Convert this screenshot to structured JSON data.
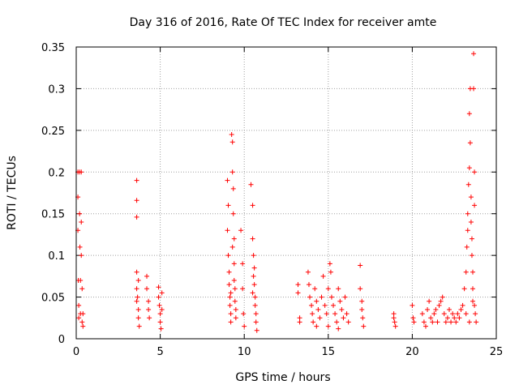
{
  "chart_data": {
    "type": "scatter",
    "title": "Day 316 of 2016, Rate Of TEC Index for receiver amte",
    "xlabel": "GPS time / hours",
    "ylabel": "ROTI / TECUs",
    "xlim": [
      0,
      25
    ],
    "ylim": [
      0,
      0.35
    ],
    "xticks": [
      0,
      5,
      10,
      15,
      20,
      25
    ],
    "xtick_labels": [
      "0",
      "5",
      "10",
      "15",
      "20",
      "25"
    ],
    "yticks": [
      0,
      0.05,
      0.1,
      0.15,
      0.2,
      0.25,
      0.3,
      0.35
    ],
    "ytick_labels": [
      "0",
      "0.05",
      "0.1",
      "0.15",
      "0.2",
      "0.25",
      "0.3",
      "0.35"
    ],
    "grid": true,
    "marker": "+",
    "color": "#ff0000",
    "series": [
      {
        "points": [
          [
            0.1,
            0.2
          ],
          [
            0.1,
            0.17
          ],
          [
            0.1,
            0.13
          ],
          [
            0.12,
            0.07
          ],
          [
            0.15,
            0.04
          ],
          [
            0.15,
            0.025
          ],
          [
            0.2,
            0.2
          ],
          [
            0.2,
            0.15
          ],
          [
            0.22,
            0.11
          ],
          [
            0.25,
            0.07
          ],
          [
            0.25,
            0.03
          ],
          [
            0.3,
            0.2
          ],
          [
            0.3,
            0.14
          ],
          [
            0.3,
            0.1
          ],
          [
            0.35,
            0.06
          ],
          [
            0.35,
            0.02
          ],
          [
            0.4,
            0.03
          ],
          [
            0.4,
            0.015
          ],
          [
            3.6,
            0.19
          ],
          [
            3.6,
            0.166
          ],
          [
            3.6,
            0.146
          ],
          [
            3.6,
            0.08
          ],
          [
            3.6,
            0.06
          ],
          [
            3.6,
            0.045
          ],
          [
            3.7,
            0.035
          ],
          [
            3.7,
            0.025
          ],
          [
            3.75,
            0.015
          ],
          [
            3.7,
            0.07
          ],
          [
            3.65,
            0.05
          ],
          [
            4.2,
            0.075
          ],
          [
            4.2,
            0.06
          ],
          [
            4.3,
            0.045
          ],
          [
            4.3,
            0.035
          ],
          [
            4.35,
            0.025
          ],
          [
            4.9,
            0.062
          ],
          [
            4.9,
            0.05
          ],
          [
            4.95,
            0.04
          ],
          [
            5.0,
            0.03
          ],
          [
            5.0,
            0.02
          ],
          [
            5.05,
            0.012
          ],
          [
            5.1,
            0.055
          ],
          [
            5.1,
            0.035
          ],
          [
            9.0,
            0.19
          ],
          [
            9.05,
            0.16
          ],
          [
            9.0,
            0.13
          ],
          [
            9.05,
            0.1
          ],
          [
            9.1,
            0.08
          ],
          [
            9.1,
            0.065
          ],
          [
            9.15,
            0.05
          ],
          [
            9.15,
            0.04
          ],
          [
            9.2,
            0.03
          ],
          [
            9.2,
            0.02
          ],
          [
            9.25,
            0.245
          ],
          [
            9.3,
            0.236
          ],
          [
            9.3,
            0.2
          ],
          [
            9.35,
            0.18
          ],
          [
            9.35,
            0.15
          ],
          [
            9.4,
            0.12
          ],
          [
            9.4,
            0.09
          ],
          [
            9.4,
            0.07
          ],
          [
            9.45,
            0.06
          ],
          [
            9.45,
            0.045
          ],
          [
            9.5,
            0.035
          ],
          [
            9.5,
            0.025
          ],
          [
            9.3,
            0.11
          ],
          [
            9.2,
            0.055
          ],
          [
            9.8,
            0.13
          ],
          [
            9.9,
            0.09
          ],
          [
            9.9,
            0.06
          ],
          [
            9.95,
            0.03
          ],
          [
            10.0,
            0.015
          ],
          [
            10.4,
            0.185
          ],
          [
            10.5,
            0.16
          ],
          [
            10.5,
            0.12
          ],
          [
            10.55,
            0.1
          ],
          [
            10.6,
            0.085
          ],
          [
            10.6,
            0.065
          ],
          [
            10.65,
            0.05
          ],
          [
            10.65,
            0.04
          ],
          [
            10.7,
            0.03
          ],
          [
            10.7,
            0.02
          ],
          [
            10.75,
            0.01
          ],
          [
            10.5,
            0.055
          ],
          [
            10.55,
            0.075
          ],
          [
            13.2,
            0.065
          ],
          [
            13.2,
            0.055
          ],
          [
            13.3,
            0.025
          ],
          [
            13.3,
            0.02
          ],
          [
            13.8,
            0.08
          ],
          [
            13.85,
            0.065
          ],
          [
            13.9,
            0.05
          ],
          [
            14.0,
            0.04
          ],
          [
            14.05,
            0.03
          ],
          [
            14.1,
            0.02
          ],
          [
            14.2,
            0.06
          ],
          [
            14.3,
            0.045
          ],
          [
            14.4,
            0.035
          ],
          [
            14.5,
            0.025
          ],
          [
            14.6,
            0.05
          ],
          [
            14.7,
            0.075
          ],
          [
            14.8,
            0.04
          ],
          [
            14.9,
            0.03
          ],
          [
            15.0,
            0.06
          ],
          [
            15.1,
            0.09
          ],
          [
            15.15,
            0.08
          ],
          [
            15.2,
            0.05
          ],
          [
            15.3,
            0.04
          ],
          [
            15.4,
            0.03
          ],
          [
            15.5,
            0.02
          ],
          [
            15.6,
            0.06
          ],
          [
            15.7,
            0.045
          ],
          [
            15.8,
            0.035
          ],
          [
            15.9,
            0.025
          ],
          [
            16.0,
            0.05
          ],
          [
            16.1,
            0.03
          ],
          [
            16.2,
            0.02
          ],
          [
            14.3,
            0.015
          ],
          [
            15.0,
            0.015
          ],
          [
            15.6,
            0.012
          ],
          [
            16.9,
            0.088
          ],
          [
            16.9,
            0.06
          ],
          [
            17.0,
            0.045
          ],
          [
            17.0,
            0.035
          ],
          [
            17.05,
            0.025
          ],
          [
            17.1,
            0.015
          ],
          [
            18.9,
            0.03
          ],
          [
            18.9,
            0.025
          ],
          [
            18.95,
            0.02
          ],
          [
            19.0,
            0.015
          ],
          [
            20.0,
            0.04
          ],
          [
            20.05,
            0.025
          ],
          [
            20.1,
            0.02
          ],
          [
            20.6,
            0.03
          ],
          [
            20.7,
            0.02
          ],
          [
            20.8,
            0.015
          ],
          [
            20.9,
            0.035
          ],
          [
            21.0,
            0.045
          ],
          [
            21.1,
            0.025
          ],
          [
            21.2,
            0.02
          ],
          [
            21.3,
            0.03
          ],
          [
            21.4,
            0.035
          ],
          [
            21.5,
            0.02
          ],
          [
            21.6,
            0.04
          ],
          [
            21.7,
            0.045
          ],
          [
            21.8,
            0.05
          ],
          [
            21.9,
            0.03
          ],
          [
            22.0,
            0.02
          ],
          [
            22.1,
            0.025
          ],
          [
            22.2,
            0.035
          ],
          [
            22.3,
            0.02
          ],
          [
            22.4,
            0.03
          ],
          [
            22.5,
            0.025
          ],
          [
            22.6,
            0.02
          ],
          [
            22.7,
            0.03
          ],
          [
            22.8,
            0.025
          ],
          [
            22.9,
            0.035
          ],
          [
            23.0,
            0.04
          ],
          [
            23.1,
            0.06
          ],
          [
            23.2,
            0.08
          ],
          [
            23.25,
            0.11
          ],
          [
            23.3,
            0.13
          ],
          [
            23.3,
            0.15
          ],
          [
            23.35,
            0.185
          ],
          [
            23.4,
            0.205
          ],
          [
            23.4,
            0.27
          ],
          [
            23.45,
            0.3
          ],
          [
            23.45,
            0.235
          ],
          [
            23.5,
            0.17
          ],
          [
            23.5,
            0.14
          ],
          [
            23.55,
            0.12
          ],
          [
            23.55,
            0.1
          ],
          [
            23.6,
            0.08
          ],
          [
            23.6,
            0.06
          ],
          [
            23.6,
            0.045
          ],
          [
            23.65,
            0.342
          ],
          [
            23.65,
            0.3
          ],
          [
            23.7,
            0.2
          ],
          [
            23.7,
            0.16
          ],
          [
            23.7,
            0.04
          ],
          [
            23.75,
            0.03
          ],
          [
            23.8,
            0.02
          ],
          [
            23.4,
            0.02
          ],
          [
            23.2,
            0.03
          ]
        ]
      }
    ]
  }
}
